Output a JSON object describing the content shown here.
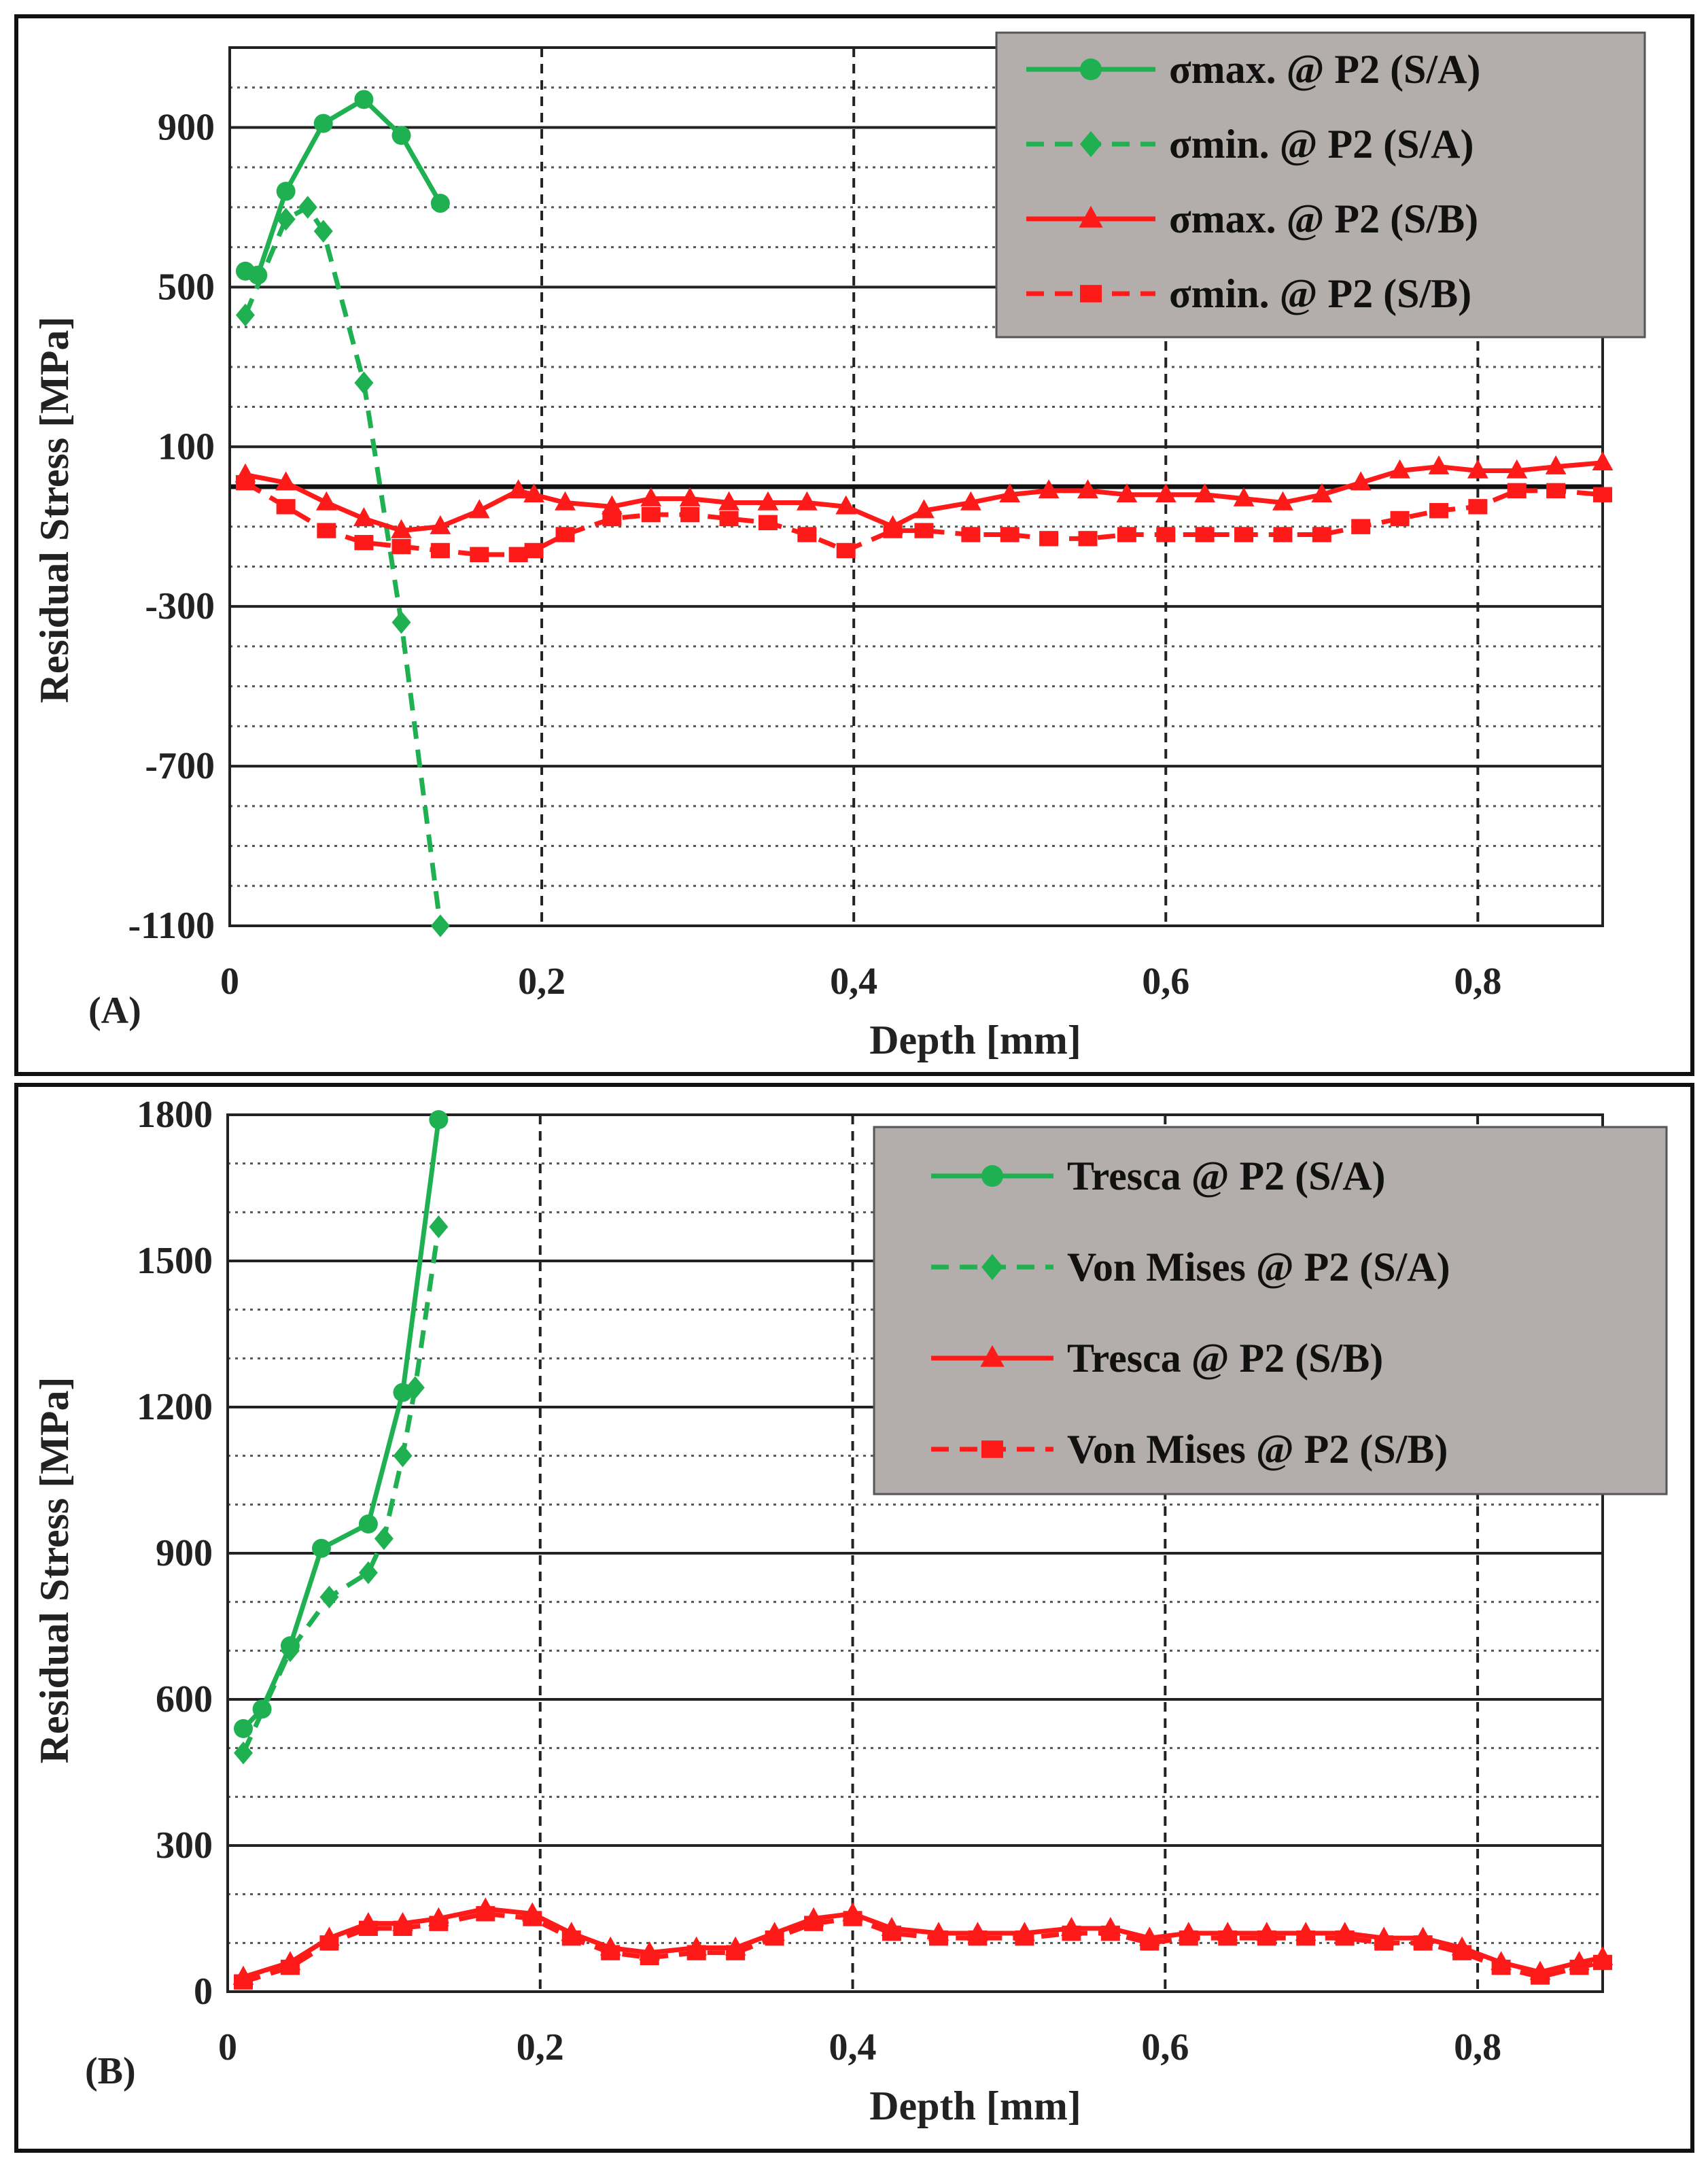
{
  "colors": {
    "green": "#1fb151",
    "red": "#ff1a1a",
    "legend_bg": "#b3aeab",
    "grid": "#222222"
  },
  "chart_data": [
    {
      "type": "line",
      "panel_label": "(A)",
      "xlabel": "Depth [mm]",
      "ylabel": "Residual Stress [MPa]",
      "xlim": [
        0,
        0.88
      ],
      "ylim": [
        -1100,
        1100
      ],
      "x_ticks": [
        0,
        0.2,
        0.4,
        0.6,
        0.8
      ],
      "x_tick_labels": [
        "0",
        "0,2",
        "0,4",
        "0,6",
        "0,8"
      ],
      "y_ticks": [
        -1100,
        -700,
        -300,
        100,
        500,
        900
      ],
      "y_tick_labels": [
        "-1100",
        "-700",
        "-300",
        "100",
        "500",
        "900"
      ],
      "series": [
        {
          "name": "σmax. @ P2 (S/A)",
          "color": "#1fb151",
          "dash": false,
          "marker": "circle",
          "x": [
            0.01,
            0.018,
            0.036,
            0.06,
            0.086,
            0.11,
            0.135
          ],
          "y": [
            540,
            530,
            740,
            910,
            970,
            880,
            710
          ]
        },
        {
          "name": "σmin. @ P2 (S/A)",
          "color": "#1fb151",
          "dash": true,
          "marker": "diamond",
          "x": [
            0.01,
            0.036,
            0.05,
            0.06,
            0.086,
            0.11,
            0.135
          ],
          "y": [
            430,
            670,
            700,
            640,
            260,
            -340,
            -1100
          ]
        },
        {
          "name": "σmax. @ P2 (S/B)",
          "color": "#ff1a1a",
          "dash": false,
          "marker": "triangle",
          "x": [
            0.01,
            0.036,
            0.062,
            0.086,
            0.11,
            0.135,
            0.16,
            0.185,
            0.195,
            0.215,
            0.245,
            0.27,
            0.295,
            0.32,
            0.345,
            0.37,
            0.395,
            0.425,
            0.445,
            0.475,
            0.5,
            0.525,
            0.55,
            0.575,
            0.6,
            0.625,
            0.65,
            0.675,
            0.7,
            0.725,
            0.75,
            0.775,
            0.8,
            0.825,
            0.85,
            0.88
          ],
          "y": [
            30,
            10,
            -40,
            -80,
            -110,
            -100,
            -60,
            -10,
            -20,
            -40,
            -50,
            -30,
            -30,
            -40,
            -40,
            -40,
            -50,
            -100,
            -60,
            -40,
            -20,
            -10,
            -10,
            -20,
            -20,
            -20,
            -30,
            -40,
            -20,
            10,
            40,
            50,
            40,
            40,
            50,
            60
          ]
        },
        {
          "name": "σmin. @ P2 (S/B)",
          "color": "#ff1a1a",
          "dash": true,
          "marker": "square",
          "x": [
            0.01,
            0.036,
            0.062,
            0.086,
            0.11,
            0.135,
            0.16,
            0.185,
            0.195,
            0.215,
            0.245,
            0.27,
            0.295,
            0.32,
            0.345,
            0.37,
            0.395,
            0.425,
            0.445,
            0.475,
            0.5,
            0.525,
            0.55,
            0.575,
            0.6,
            0.625,
            0.65,
            0.675,
            0.7,
            0.725,
            0.75,
            0.775,
            0.8,
            0.825,
            0.85,
            0.88
          ],
          "y": [
            10,
            -50,
            -110,
            -140,
            -150,
            -160,
            -170,
            -170,
            -160,
            -120,
            -80,
            -70,
            -70,
            -80,
            -90,
            -120,
            -160,
            -110,
            -110,
            -120,
            -120,
            -130,
            -130,
            -120,
            -120,
            -120,
            -120,
            -120,
            -120,
            -100,
            -80,
            -60,
            -50,
            -10,
            -10,
            -20
          ]
        }
      ]
    },
    {
      "type": "line",
      "panel_label": "(B)",
      "xlabel": "Depth [mm]",
      "ylabel": "Residual Stress [MPa]",
      "xlim": [
        0,
        0.88
      ],
      "ylim": [
        0,
        1800
      ],
      "x_ticks": [
        0,
        0.2,
        0.4,
        0.6,
        0.8
      ],
      "x_tick_labels": [
        "0",
        "0,2",
        "0,4",
        "0,6",
        "0,8"
      ],
      "y_ticks": [
        0,
        300,
        600,
        900,
        1200,
        1500,
        1800
      ],
      "y_tick_labels": [
        "0",
        "300",
        "600",
        "900",
        "1200",
        "1500",
        "1800"
      ],
      "series": [
        {
          "name": "Tresca @ P2 (S/A)",
          "color": "#1fb151",
          "dash": false,
          "marker": "circle",
          "x": [
            0.01,
            0.022,
            0.04,
            0.06,
            0.09,
            0.112,
            0.135
          ],
          "y": [
            540,
            580,
            710,
            910,
            960,
            1230,
            1790
          ]
        },
        {
          "name": "Von Mises @ P2 (S/A)",
          "color": "#1fb151",
          "dash": true,
          "marker": "diamond",
          "x": [
            0.01,
            0.04,
            0.065,
            0.09,
            0.1,
            0.112,
            0.12,
            0.135
          ],
          "y": [
            490,
            700,
            810,
            860,
            930,
            1100,
            1240,
            1570
          ]
        },
        {
          "name": "Tresca @ P2 (S/B)",
          "color": "#ff1a1a",
          "dash": false,
          "marker": "triangle",
          "x": [
            0.01,
            0.04,
            0.065,
            0.09,
            0.112,
            0.135,
            0.165,
            0.195,
            0.22,
            0.245,
            0.27,
            0.3,
            0.325,
            0.35,
            0.375,
            0.4,
            0.425,
            0.455,
            0.48,
            0.51,
            0.54,
            0.565,
            0.59,
            0.615,
            0.64,
            0.665,
            0.69,
            0.715,
            0.74,
            0.765,
            0.79,
            0.815,
            0.84,
            0.865,
            0.88
          ],
          "y": [
            30,
            60,
            110,
            140,
            140,
            150,
            170,
            160,
            120,
            90,
            80,
            90,
            90,
            120,
            150,
            160,
            130,
            120,
            120,
            120,
            130,
            130,
            110,
            120,
            120,
            120,
            120,
            120,
            110,
            110,
            90,
            60,
            40,
            60,
            70
          ]
        },
        {
          "name": "Von Mises @ P2 (S/B)",
          "color": "#ff1a1a",
          "dash": true,
          "marker": "square",
          "x": [
            0.01,
            0.04,
            0.065,
            0.09,
            0.112,
            0.135,
            0.165,
            0.195,
            0.22,
            0.245,
            0.27,
            0.3,
            0.325,
            0.35,
            0.375,
            0.4,
            0.425,
            0.455,
            0.48,
            0.51,
            0.54,
            0.565,
            0.59,
            0.615,
            0.64,
            0.665,
            0.69,
            0.715,
            0.74,
            0.765,
            0.79,
            0.815,
            0.84,
            0.865,
            0.88
          ],
          "y": [
            20,
            50,
            100,
            130,
            130,
            140,
            160,
            150,
            110,
            80,
            70,
            80,
            80,
            110,
            140,
            150,
            120,
            110,
            110,
            110,
            120,
            120,
            100,
            110,
            110,
            110,
            110,
            110,
            100,
            100,
            80,
            50,
            30,
            50,
            60
          ]
        }
      ]
    }
  ]
}
